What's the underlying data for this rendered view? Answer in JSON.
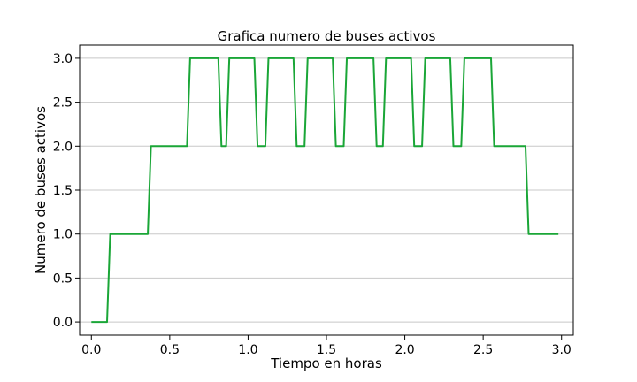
{
  "chart_data": {
    "type": "line",
    "title": "Grafica numero de buses activos",
    "xlabel": "Tiempo en horas",
    "ylabel": "Numero de buses activos",
    "xlim": [
      -0.075,
      3.075
    ],
    "ylim": [
      -0.15,
      3.15
    ],
    "xticks": [
      0.0,
      0.5,
      1.0,
      1.5,
      2.0,
      2.5,
      3.0
    ],
    "xtick_labels": [
      "0.0",
      "0.5",
      "1.0",
      "1.5",
      "2.0",
      "2.5",
      "3.0"
    ],
    "yticks": [
      0.0,
      0.5,
      1.0,
      1.5,
      2.0,
      2.5,
      3.0
    ],
    "ytick_labels": [
      "0.0",
      "0.5",
      "1.0",
      "1.5",
      "2.0",
      "2.5",
      "3.0"
    ],
    "grid": "horizontal",
    "line_color": "#1aa637",
    "series": [
      {
        "name": "",
        "x": [
          0.0,
          0.1,
          0.12,
          0.36,
          0.38,
          0.61,
          0.63,
          0.81,
          0.83,
          0.86,
          0.88,
          1.04,
          1.06,
          1.11,
          1.13,
          1.29,
          1.31,
          1.36,
          1.38,
          1.54,
          1.56,
          1.61,
          1.63,
          1.8,
          1.82,
          1.86,
          1.88,
          2.04,
          2.06,
          2.11,
          2.13,
          2.29,
          2.31,
          2.36,
          2.38,
          2.55,
          2.57,
          2.77,
          2.79,
          2.98
        ],
        "y": [
          0,
          0,
          1,
          1,
          2,
          2,
          3,
          3,
          2,
          2,
          3,
          3,
          2,
          2,
          3,
          3,
          2,
          2,
          3,
          3,
          2,
          2,
          3,
          3,
          2,
          2,
          3,
          3,
          2,
          2,
          3,
          3,
          2,
          2,
          3,
          3,
          2,
          2,
          1,
          1
        ]
      }
    ]
  }
}
